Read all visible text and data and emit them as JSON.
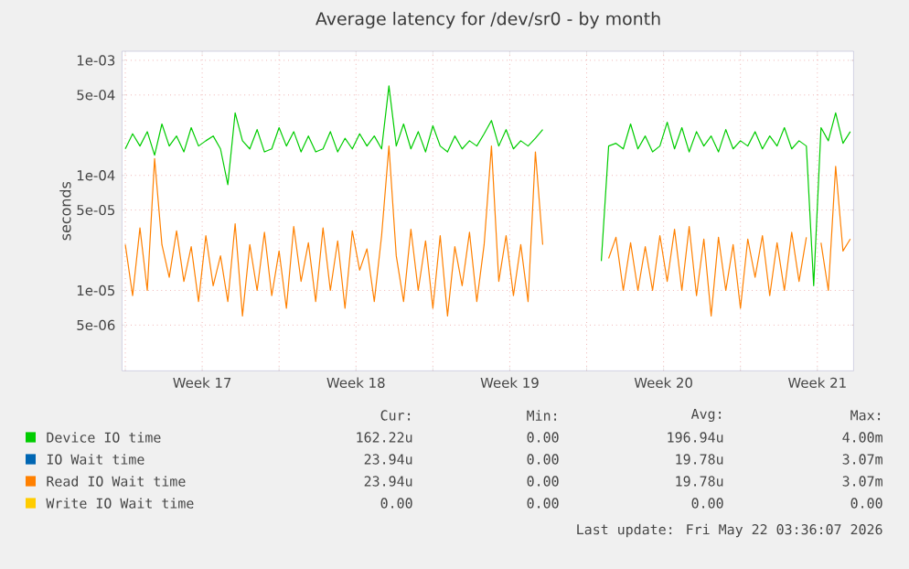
{
  "chart_data": {
    "type": "line",
    "title": "Average latency for /dev/sr0 - by month",
    "ylabel": "seconds",
    "log": true,
    "grid": true,
    "legend": "bottom",
    "line_style": "solid",
    "xlim": [
      "2026-04-18T20:24",
      "2026-05-22T03:36"
    ],
    "xticks": [
      {
        "value": "2026-04-19T00:00",
        "label": null
      },
      {
        "value": "2026-04-22T12:00",
        "label": "Week 17"
      },
      {
        "value": "2026-04-26T00:00",
        "label": null
      },
      {
        "value": "2026-04-29T12:00",
        "label": "Week 18"
      },
      {
        "value": "2026-05-03T00:00",
        "label": null
      },
      {
        "value": "2026-05-06T12:00",
        "label": "Week 19"
      },
      {
        "value": "2026-05-10T00:00",
        "label": null
      },
      {
        "value": "2026-05-13T12:00",
        "label": "Week 20"
      },
      {
        "value": "2026-05-17T00:00",
        "label": null
      },
      {
        "value": "2026-05-20T12:00",
        "label": "Week 21"
      }
    ],
    "ylim": [
      2e-06,
      0.0012
    ],
    "yticks": [
      {
        "value": 5e-06,
        "label": "5e-06"
      },
      {
        "value": 1e-05,
        "label": "1e-05"
      },
      {
        "value": 5e-05,
        "label": "5e-05"
      },
      {
        "value": 0.0001,
        "label": "1e-04"
      },
      {
        "value": 0.0005,
        "label": "5e-04"
      },
      {
        "value": 0.001,
        "label": "1e-03"
      }
    ],
    "x": [
      "2026-04-19T00:00",
      "2026-04-19T08:00",
      "2026-04-19T16:00",
      "2026-04-20T00:00",
      "2026-04-20T08:00",
      "2026-04-20T16:00",
      "2026-04-21T00:00",
      "2026-04-21T08:00",
      "2026-04-21T16:00",
      "2026-04-22T00:00",
      "2026-04-22T08:00",
      "2026-04-22T16:00",
      "2026-04-23T00:00",
      "2026-04-23T08:00",
      "2026-04-23T16:00",
      "2026-04-24T00:00",
      "2026-04-24T08:00",
      "2026-04-24T16:00",
      "2026-04-25T00:00",
      "2026-04-25T08:00",
      "2026-04-25T16:00",
      "2026-04-26T00:00",
      "2026-04-26T08:00",
      "2026-04-26T16:00",
      "2026-04-27T00:00",
      "2026-04-27T08:00",
      "2026-04-27T16:00",
      "2026-04-28T00:00",
      "2026-04-28T08:00",
      "2026-04-28T16:00",
      "2026-04-29T00:00",
      "2026-04-29T08:00",
      "2026-04-29T16:00",
      "2026-04-30T00:00",
      "2026-04-30T08:00",
      "2026-04-30T16:00",
      "2026-05-01T00:00",
      "2026-05-01T08:00",
      "2026-05-01T16:00",
      "2026-05-02T00:00",
      "2026-05-02T08:00",
      "2026-05-02T16:00",
      "2026-05-03T00:00",
      "2026-05-03T08:00",
      "2026-05-03T16:00",
      "2026-05-04T00:00",
      "2026-05-04T08:00",
      "2026-05-04T16:00",
      "2026-05-05T00:00",
      "2026-05-05T08:00",
      "2026-05-05T16:00",
      "2026-05-06T00:00",
      "2026-05-06T08:00",
      "2026-05-06T16:00",
      "2026-05-07T00:00",
      "2026-05-07T08:00",
      "2026-05-07T16:00",
      "2026-05-08T00:00",
      "2026-05-09T00:00",
      "2026-05-10T16:00",
      "2026-05-11T00:00",
      "2026-05-11T08:00",
      "2026-05-11T16:00",
      "2026-05-12T00:00",
      "2026-05-12T08:00",
      "2026-05-12T16:00",
      "2026-05-13T00:00",
      "2026-05-13T08:00",
      "2026-05-13T16:00",
      "2026-05-14T00:00",
      "2026-05-14T08:00",
      "2026-05-14T16:00",
      "2026-05-15T00:00",
      "2026-05-15T08:00",
      "2026-05-15T16:00",
      "2026-05-16T00:00",
      "2026-05-16T08:00",
      "2026-05-16T16:00",
      "2026-05-17T00:00",
      "2026-05-17T08:00",
      "2026-05-17T16:00",
      "2026-05-18T00:00",
      "2026-05-18T08:00",
      "2026-05-18T16:00",
      "2026-05-19T00:00",
      "2026-05-19T08:00",
      "2026-05-19T16:00",
      "2026-05-20T00:00",
      "2026-05-20T08:00",
      "2026-05-20T16:00",
      "2026-05-21T00:00",
      "2026-05-21T08:00",
      "2026-05-21T16:00",
      "2026-05-22T00:00"
    ],
    "series": [
      {
        "name": "Device IO time",
        "color": "#00cc00",
        "values": [
          0.00017,
          0.00023,
          0.00018,
          0.00024,
          0.00015,
          0.00028,
          0.00018,
          0.00022,
          0.00016,
          0.00026,
          0.00018,
          0.0002,
          0.00022,
          0.00017,
          8.3e-05,
          0.00035,
          0.0002,
          0.00017,
          0.00025,
          0.00016,
          0.00017,
          0.00026,
          0.00018,
          0.00024,
          0.00016,
          0.00022,
          0.00016,
          0.00017,
          0.00024,
          0.00016,
          0.00021,
          0.00017,
          0.00023,
          0.00018,
          0.00022,
          0.00017,
          0.0006,
          0.00018,
          0.00028,
          0.00017,
          0.00024,
          0.00016,
          0.00027,
          0.00018,
          0.00016,
          0.00022,
          0.00017,
          0.0002,
          0.00018,
          0.00023,
          0.0003,
          0.00018,
          0.00025,
          0.00017,
          0.0002,
          0.00018,
          0.00021,
          0.00025,
          null,
          1.8e-05,
          0.00018,
          0.00019,
          0.00017,
          0.00028,
          0.00017,
          0.00022,
          0.00016,
          0.00018,
          0.00029,
          0.00017,
          0.00026,
          0.00016,
          0.00024,
          0.00018,
          0.00022,
          0.00016,
          0.00025,
          0.00017,
          0.0002,
          0.00018,
          0.00024,
          0.00017,
          0.00022,
          0.00018,
          0.00026,
          0.00017,
          0.0002,
          0.00018,
          1.1e-05,
          0.00026,
          0.0002,
          0.00035,
          0.00019,
          0.00024
        ]
      },
      {
        "name": "IO Wait time",
        "color": "#0066b3",
        "values": [
          null,
          null,
          null,
          null,
          null,
          null,
          null,
          null,
          null,
          null,
          null,
          null,
          null,
          null,
          null,
          null,
          null,
          null,
          null,
          null,
          null,
          null,
          null,
          null,
          null,
          null,
          null,
          null,
          null,
          null,
          null,
          null,
          null,
          null,
          null,
          null,
          null,
          null,
          null,
          null,
          null,
          null,
          null,
          null,
          null,
          null,
          null,
          null,
          null,
          null,
          null,
          null,
          null,
          null,
          null,
          null,
          null,
          null,
          null,
          null,
          null,
          null,
          null,
          null,
          null,
          null,
          null,
          null,
          null,
          null,
          null,
          null,
          null,
          null,
          null,
          null,
          null,
          null,
          null,
          null,
          null,
          null,
          null,
          null,
          null,
          null,
          null,
          null,
          null,
          null,
          null,
          null,
          null,
          null
        ]
      },
      {
        "name": "Read IO Wait time",
        "color": "#ff8000",
        "values": [
          2.5e-05,
          9e-06,
          3.5e-05,
          1e-05,
          0.00014,
          2.5e-05,
          1.3e-05,
          3.3e-05,
          1.2e-05,
          2.4e-05,
          8e-06,
          3e-05,
          1.1e-05,
          2e-05,
          8e-06,
          3.8e-05,
          6e-06,
          2.5e-05,
          1e-05,
          3.2e-05,
          9e-06,
          2.2e-05,
          7e-06,
          3.6e-05,
          1.2e-05,
          2.6e-05,
          8e-06,
          3.5e-05,
          1e-05,
          2.7e-05,
          7e-06,
          3.3e-05,
          1.5e-05,
          2.3e-05,
          8e-06,
          3e-05,
          0.00018,
          2e-05,
          8e-06,
          3.4e-05,
          1e-05,
          2.7e-05,
          7e-06,
          3e-05,
          6e-06,
          2.4e-05,
          1.1e-05,
          3.2e-05,
          8e-06,
          2.5e-05,
          0.00018,
          1.2e-05,
          3e-05,
          9e-06,
          2.5e-05,
          8e-06,
          0.00016,
          2.5e-05,
          null,
          null,
          1.9e-05,
          2.9e-05,
          1e-05,
          2.6e-05,
          1e-05,
          2.4e-05,
          1e-05,
          3e-05,
          1.2e-05,
          3.4e-05,
          1e-05,
          3.6e-05,
          9e-06,
          2.8e-05,
          6e-06,
          2.9e-05,
          1e-05,
          2.5e-05,
          7e-06,
          2.8e-05,
          1.3e-05,
          3e-05,
          9e-06,
          2.6e-05,
          1e-05,
          3.2e-05,
          1.2e-05,
          2.9e-05,
          null,
          2.6e-05,
          1e-05,
          0.00012,
          2.2e-05,
          2.8e-05
        ]
      },
      {
        "name": "Write IO Wait time",
        "color": "#ffcc00",
        "values": [
          null,
          null,
          null,
          null,
          null,
          null,
          null,
          null,
          null,
          null,
          null,
          null,
          null,
          null,
          null,
          null,
          null,
          null,
          null,
          null,
          null,
          null,
          null,
          null,
          null,
          null,
          null,
          null,
          null,
          null,
          null,
          null,
          null,
          null,
          null,
          null,
          null,
          null,
          null,
          null,
          null,
          null,
          null,
          null,
          null,
          null,
          null,
          null,
          null,
          null,
          null,
          null,
          null,
          null,
          null,
          null,
          null,
          null,
          null,
          null,
          null,
          null,
          null,
          null,
          null,
          null,
          null,
          null,
          null,
          null,
          null,
          null,
          null,
          null,
          null,
          null,
          null,
          null,
          null,
          null,
          null,
          null,
          null,
          null,
          null,
          null,
          null,
          null,
          null,
          null,
          null,
          null,
          null,
          null
        ]
      }
    ],
    "annotations": [
      "Cur:",
      "Min:",
      "Avg:",
      "Max:",
      "162.22u",
      "0.00",
      "196.94u",
      "4.00m",
      "23.94u",
      "0.00",
      "19.78u",
      "3.07m",
      "23.94u",
      "0.00",
      "19.78u",
      "3.07m",
      "0.00",
      "0.00",
      "0.00",
      "0.00",
      "Last update: Fri May 22 03:36:07 2026"
    ]
  }
}
